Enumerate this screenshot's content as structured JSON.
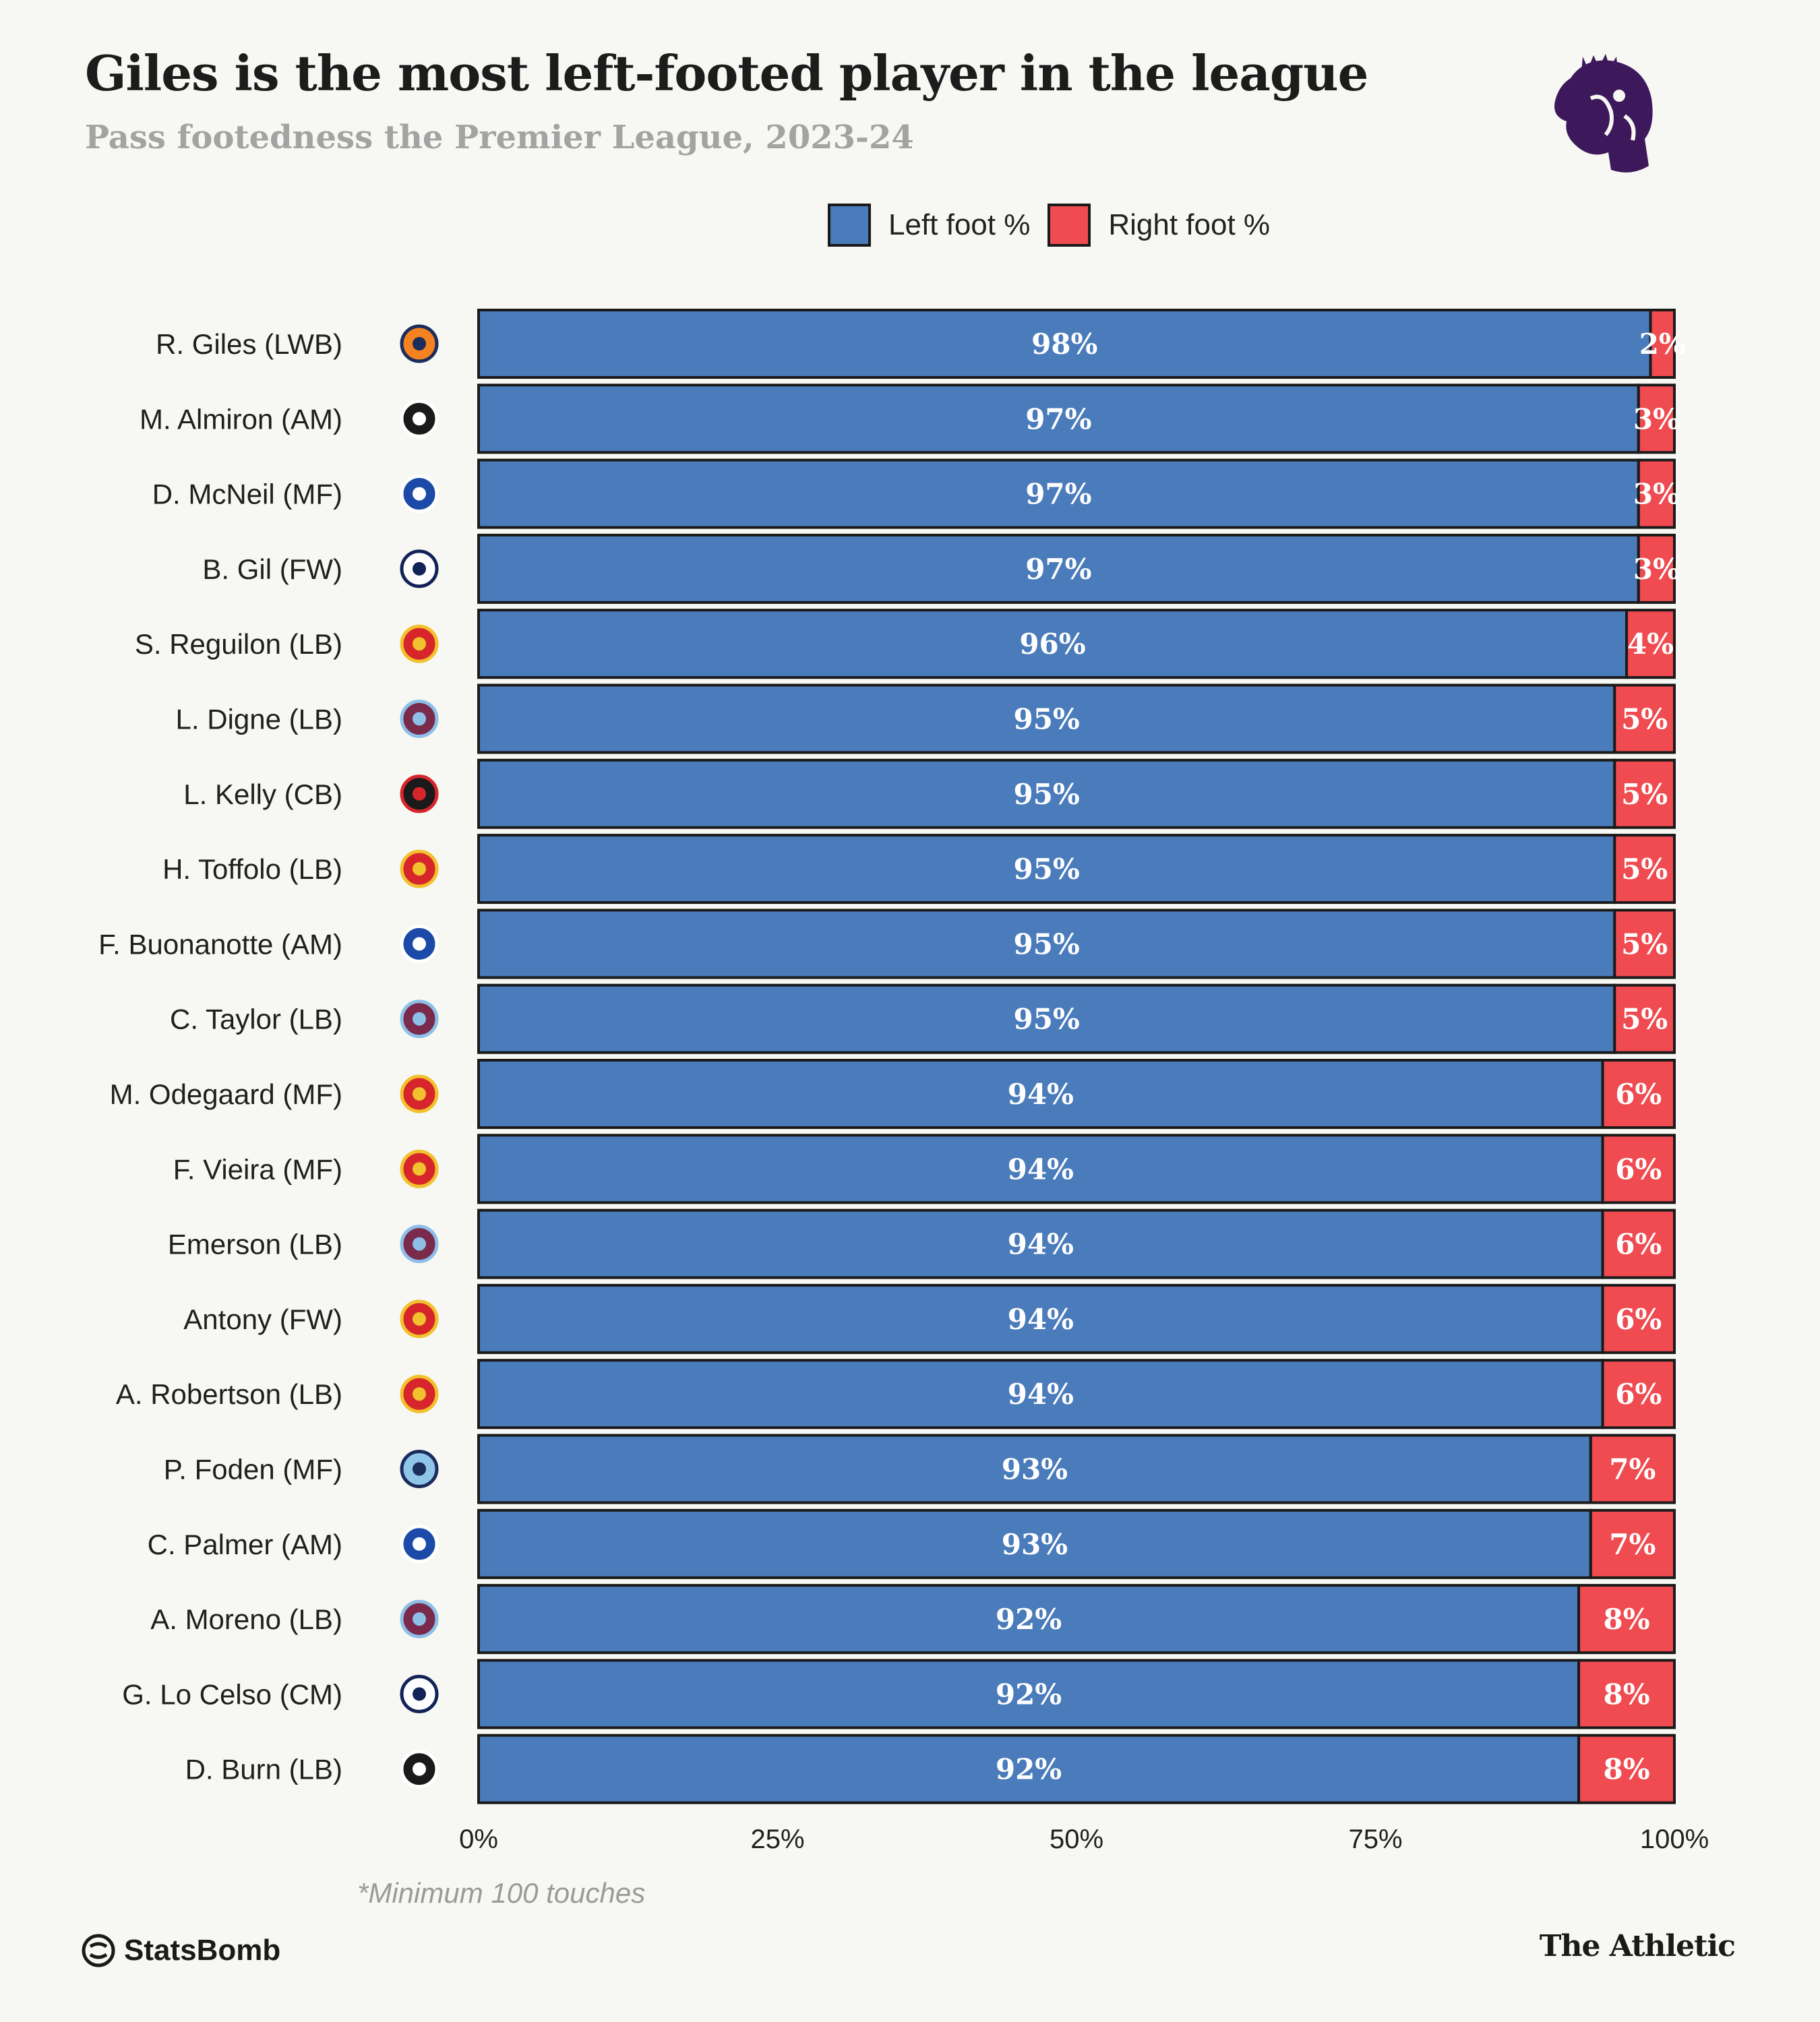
{
  "header": {
    "title": "Giles is the most left-footed player in the league",
    "subtitle": "Pass footedness the Premier League, 2023-24",
    "logo_icon": "premier-league-lion-icon"
  },
  "legend": {
    "left_label": "Left foot %",
    "right_label": "Right foot %"
  },
  "colors": {
    "left": "#4a7bbb",
    "right": "#ef4b50",
    "outline": "#1a1a1a",
    "background": "#f7f7f3"
  },
  "chart_data": {
    "type": "bar",
    "orientation": "horizontal",
    "stacked": true,
    "categories": [
      "R. Giles (LWB)",
      "M. Almiron (AM)",
      "D. McNeil (MF)",
      "B. Gil (FW)",
      "S. Reguilon (LB)",
      "L. Digne (LB)",
      "L. Kelly (CB)",
      "H. Toffolo (LB)",
      "F. Buonanotte (AM)",
      "C. Taylor (LB)",
      "M. Odegaard (MF)",
      "F. Vieira (MF)",
      "Emerson (LB)",
      "Antony (FW)",
      "A. Robertson (LB)",
      "P. Foden (MF)",
      "C. Palmer (AM)",
      "A. Moreno (LB)",
      "G. Lo Celso (CM)",
      "D. Burn (LB)"
    ],
    "club_icons": [
      "luton-town-crest-icon",
      "newcastle-crest-icon",
      "everton-crest-icon",
      "tottenham-crest-icon",
      "manchester-united-crest-icon",
      "aston-villa-crest-icon",
      "bournemouth-crest-icon",
      "nottingham-forest-crest-icon",
      "brighton-crest-icon",
      "burnley-crest-icon",
      "arsenal-crest-icon",
      "arsenal-crest-icon",
      "west-ham-crest-icon",
      "manchester-united-crest-icon",
      "liverpool-crest-icon",
      "manchester-city-crest-icon",
      "chelsea-crest-icon",
      "aston-villa-crest-icon",
      "tottenham-crest-icon",
      "newcastle-crest-icon"
    ],
    "series": [
      {
        "name": "Left foot %",
        "values": [
          98,
          97,
          97,
          97,
          96,
          95,
          95,
          95,
          95,
          95,
          94,
          94,
          94,
          94,
          94,
          93,
          93,
          92,
          92,
          92
        ]
      },
      {
        "name": "Right foot %",
        "values": [
          2,
          3,
          3,
          3,
          4,
          5,
          5,
          5,
          5,
          5,
          6,
          6,
          6,
          6,
          6,
          7,
          7,
          8,
          8,
          8
        ]
      }
    ],
    "xlim": [
      0,
      100
    ],
    "xticks": [
      0,
      25,
      50,
      75,
      100
    ],
    "xtick_labels": [
      "0%",
      "25%",
      "50%",
      "75%",
      "100%"
    ],
    "legend_position": "top-center",
    "grid": false
  },
  "footnote": "*Minimum 100 touches",
  "footer": {
    "left_brand": "StatsBomb",
    "left_brand_icon": "statsbomb-logo-icon",
    "right_brand": "The Athletic"
  }
}
